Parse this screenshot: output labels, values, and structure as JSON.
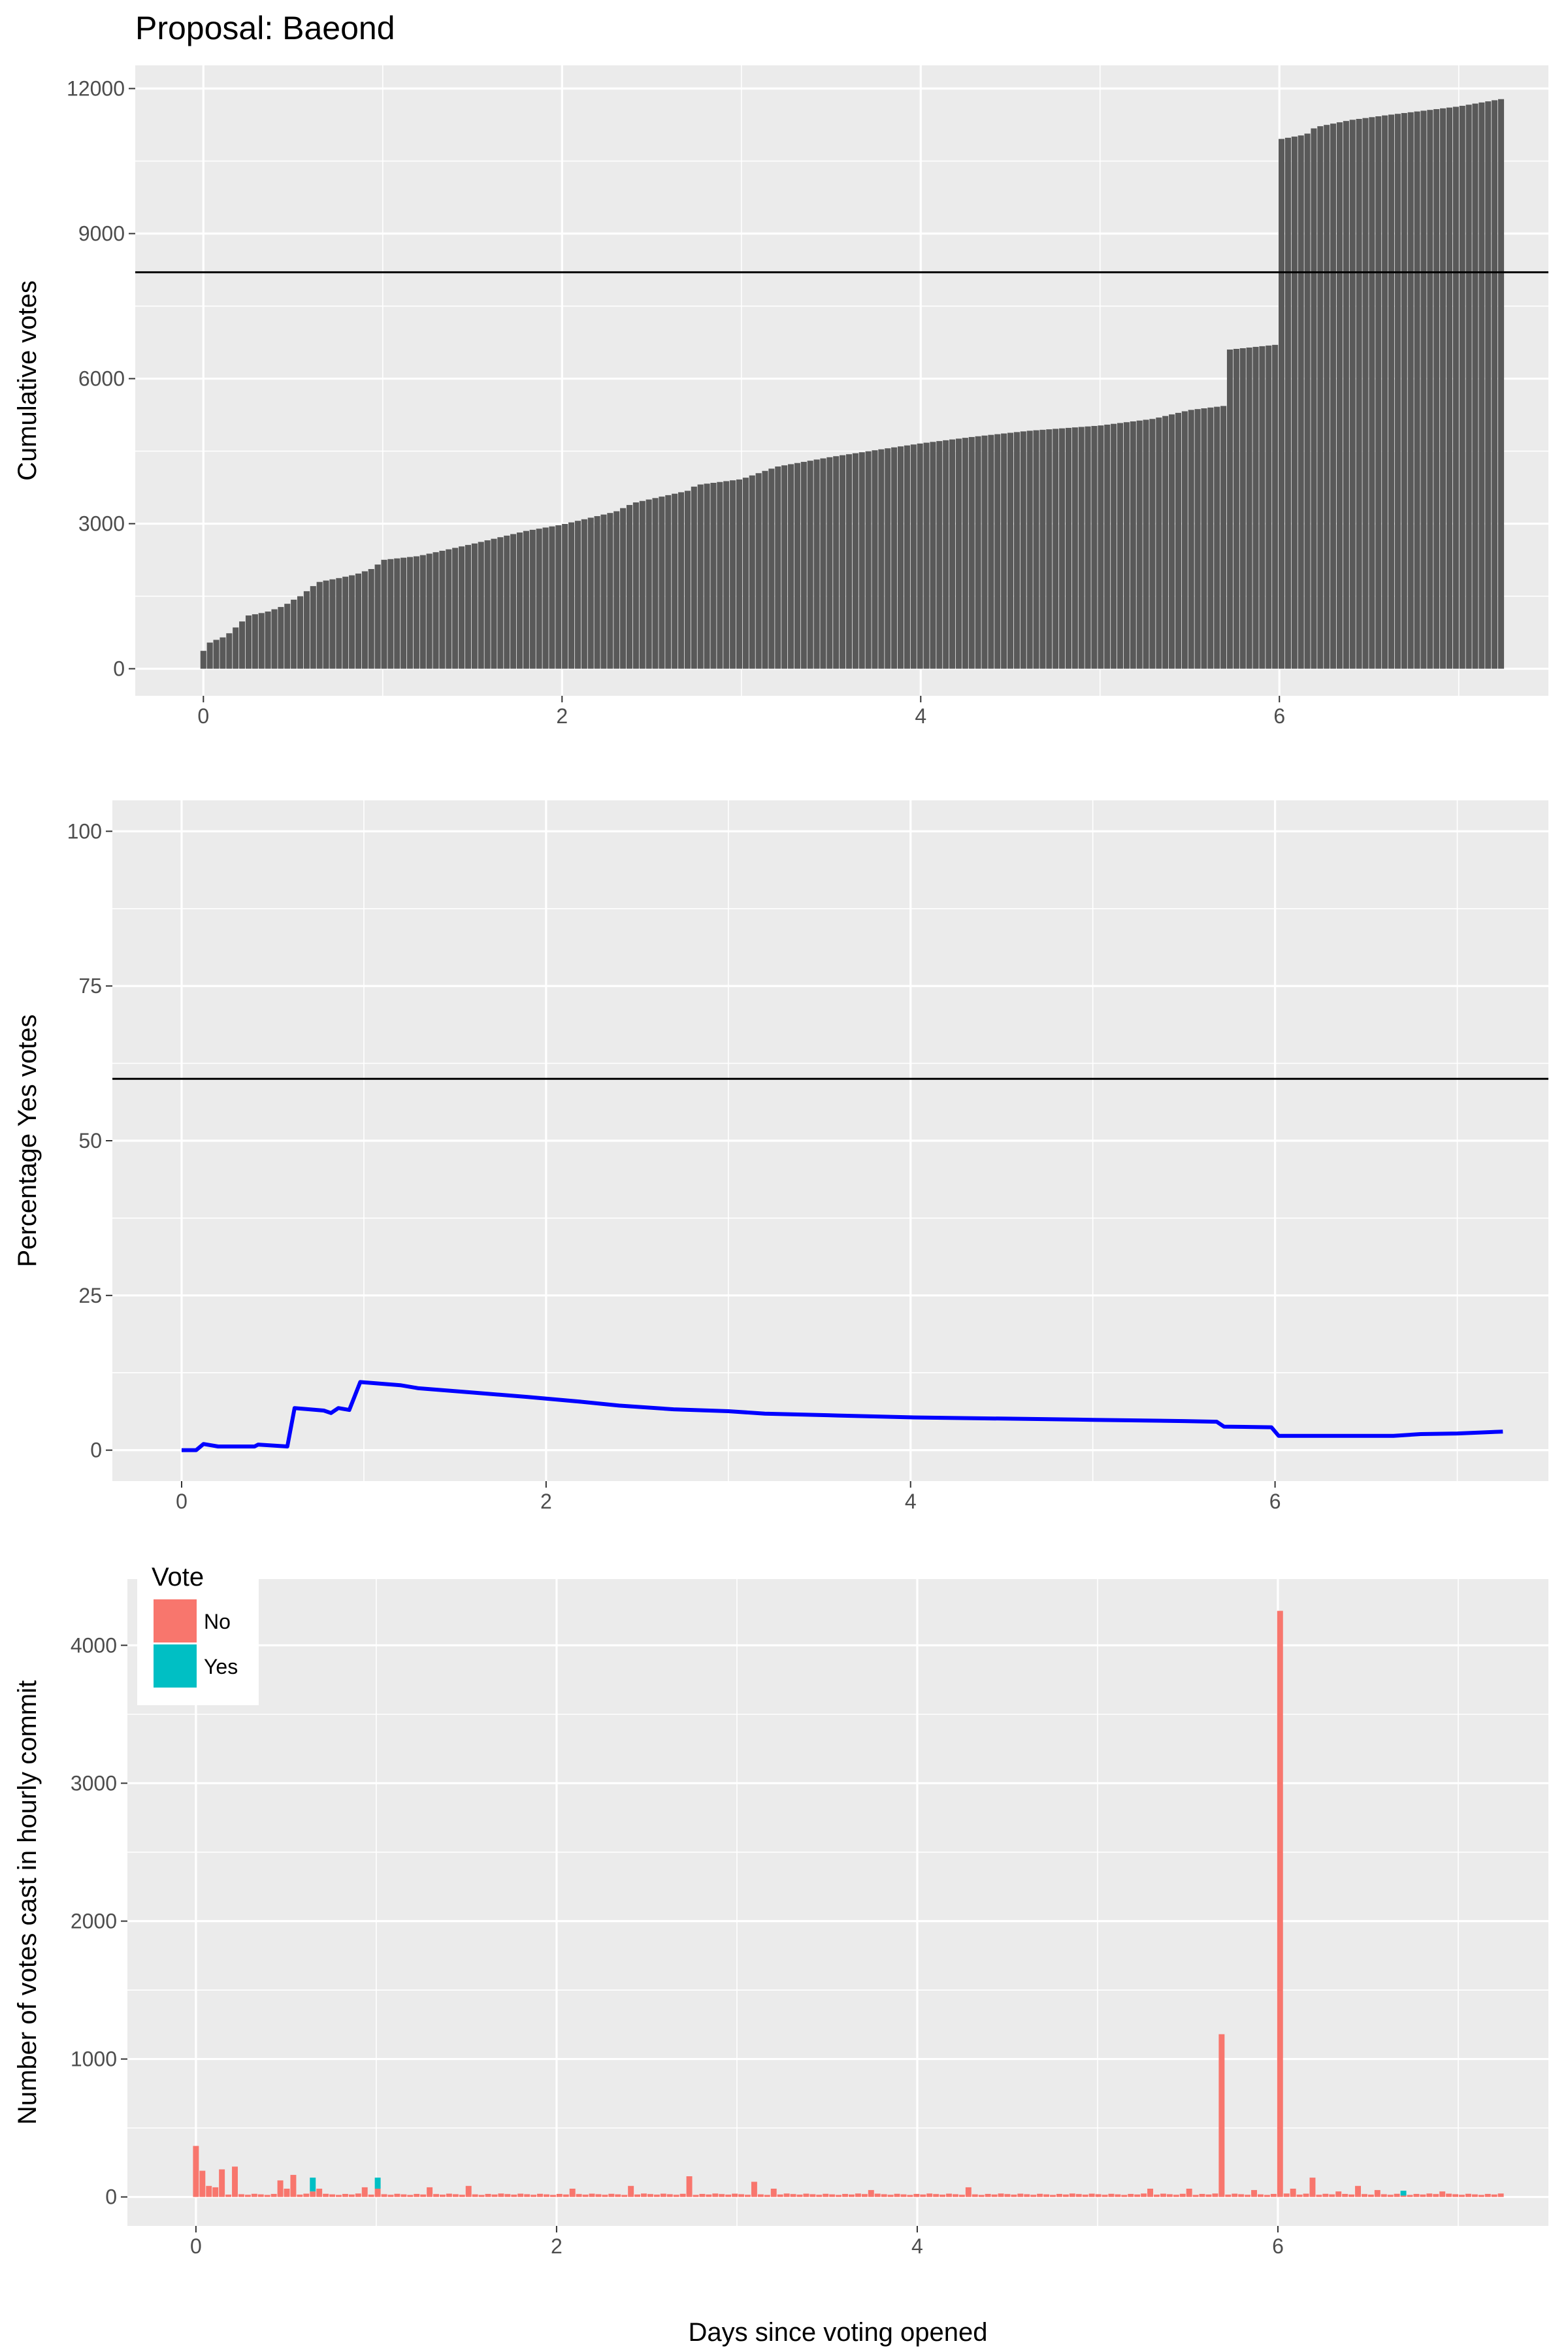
{
  "title": "Proposal: Baeond",
  "colors": {
    "cumulative_bar": "#595959",
    "yes_line": "#0000ff",
    "no": "#f8766d",
    "yes": "#00bfc4",
    "reference_line": "#000000"
  },
  "chart_data": [
    {
      "type": "bar",
      "ylabel": "Cumulative votes",
      "xlabel": "",
      "xlim": [
        -0.38,
        7.5
      ],
      "ylim": [
        -560,
        12480
      ],
      "x_ticks": [
        0,
        2,
        4,
        6
      ],
      "y_ticks": [
        0,
        3000,
        6000,
        9000,
        12000
      ],
      "x_tick_labels": [
        "0",
        "2",
        "4",
        "6"
      ],
      "y_tick_labels": [
        "0",
        "3000",
        "6000",
        "9000",
        "12000"
      ],
      "reference_line": 8200,
      "grid": true,
      "bar_width_days": 0.036,
      "keypoints": [
        [
          0,
          370
        ],
        [
          0.04,
          560
        ],
        [
          0.1,
          630
        ],
        [
          0.14,
          720
        ],
        [
          0.2,
          920
        ],
        [
          0.25,
          1100
        ],
        [
          0.35,
          1170
        ],
        [
          0.45,
          1300
        ],
        [
          0.5,
          1420
        ],
        [
          0.55,
          1520
        ],
        [
          0.6,
          1680
        ],
        [
          0.65,
          1800
        ],
        [
          0.75,
          1870
        ],
        [
          0.85,
          1950
        ],
        [
          0.95,
          2080
        ],
        [
          1.0,
          2250
        ],
        [
          1.2,
          2330
        ],
        [
          1.5,
          2580
        ],
        [
          1.8,
          2850
        ],
        [
          2.0,
          2980
        ],
        [
          2.3,
          3250
        ],
        [
          2.4,
          3430
        ],
        [
          2.7,
          3680
        ],
        [
          2.75,
          3800
        ],
        [
          3.0,
          3920
        ],
        [
          3.1,
          4050
        ],
        [
          3.2,
          4180
        ],
        [
          3.5,
          4380
        ],
        [
          3.8,
          4550
        ],
        [
          4.0,
          4660
        ],
        [
          4.3,
          4800
        ],
        [
          4.6,
          4920
        ],
        [
          5.0,
          5030
        ],
        [
          5.3,
          5170
        ],
        [
          5.5,
          5350
        ],
        [
          5.7,
          5440
        ],
        [
          5.72,
          6600
        ],
        [
          5.98,
          6700
        ],
        [
          6.0,
          10950
        ],
        [
          6.15,
          11050
        ],
        [
          6.2,
          11200
        ],
        [
          6.4,
          11350
        ],
        [
          6.6,
          11450
        ],
        [
          7.0,
          11630
        ],
        [
          7.25,
          11790
        ]
      ]
    },
    {
      "type": "line",
      "ylabel": "Percentage Yes votes",
      "xlabel": "",
      "xlim": [
        -0.38,
        7.5
      ],
      "ylim": [
        -5,
        105
      ],
      "x_ticks": [
        0,
        2,
        4,
        6
      ],
      "y_ticks": [
        0,
        25,
        50,
        75,
        100
      ],
      "x_tick_labels": [
        "0",
        "2",
        "4",
        "6"
      ],
      "y_tick_labels": [
        "0",
        "25",
        "50",
        "75",
        "100"
      ],
      "reference_line": 60,
      "grid": true,
      "points": [
        [
          0,
          0
        ],
        [
          0.08,
          0
        ],
        [
          0.12,
          1
        ],
        [
          0.2,
          0.6
        ],
        [
          0.4,
          0.6
        ],
        [
          0.42,
          0.9
        ],
        [
          0.58,
          0.6
        ],
        [
          0.62,
          6.8
        ],
        [
          0.78,
          6.4
        ],
        [
          0.82,
          6
        ],
        [
          0.86,
          6.8
        ],
        [
          0.92,
          6.5
        ],
        [
          0.98,
          11
        ],
        [
          1.2,
          10.5
        ],
        [
          1.3,
          10
        ],
        [
          1.6,
          9.3
        ],
        [
          1.9,
          8.6
        ],
        [
          2.2,
          7.8
        ],
        [
          2.4,
          7.2
        ],
        [
          2.7,
          6.6
        ],
        [
          3.0,
          6.3
        ],
        [
          3.2,
          5.9
        ],
        [
          3.6,
          5.6
        ],
        [
          4.0,
          5.3
        ],
        [
          4.5,
          5.1
        ],
        [
          5.0,
          4.9
        ],
        [
          5.5,
          4.7
        ],
        [
          5.68,
          4.6
        ],
        [
          5.72,
          3.8
        ],
        [
          5.98,
          3.7
        ],
        [
          6.02,
          2.3
        ],
        [
          6.3,
          2.3
        ],
        [
          6.65,
          2.3
        ],
        [
          6.8,
          2.6
        ],
        [
          7.0,
          2.7
        ],
        [
          7.25,
          3.0
        ]
      ]
    },
    {
      "type": "bar",
      "stacked": true,
      "xlabel": "Days since voting opened",
      "ylabel": "Number of votes cast in hourly commit",
      "xlim": [
        -0.38,
        7.5
      ],
      "ylim": [
        -210,
        4480
      ],
      "x_ticks": [
        0,
        2,
        4,
        6
      ],
      "y_ticks": [
        0,
        1000,
        2000,
        3000,
        4000
      ],
      "x_tick_labels": [
        "0",
        "2",
        "4",
        "6"
      ],
      "y_tick_labels": [
        "0",
        "1000",
        "2000",
        "3000",
        "4000"
      ],
      "legend": {
        "title": "Vote",
        "position": "top-left",
        "entries": [
          "No",
          "Yes"
        ]
      },
      "grid": true,
      "bar_width_days": 0.036,
      "baseline_no": 15,
      "bars": [
        {
          "x": 0,
          "no": 370,
          "yes": 0
        },
        {
          "x": 0.04,
          "no": 190,
          "yes": 0
        },
        {
          "x": 0.08,
          "no": 80,
          "yes": 0
        },
        {
          "x": 0.12,
          "no": 70,
          "yes": 0
        },
        {
          "x": 0.16,
          "no": 200,
          "yes": 0
        },
        {
          "x": 0.2,
          "no": 220,
          "yes": 0
        },
        {
          "x": 0.45,
          "no": 120,
          "yes": 0
        },
        {
          "x": 0.5,
          "no": 60,
          "yes": 0
        },
        {
          "x": 0.55,
          "no": 160,
          "yes": 0
        },
        {
          "x": 0.63,
          "no": 40,
          "yes": 100
        },
        {
          "x": 0.67,
          "no": 60,
          "yes": 0
        },
        {
          "x": 0.95,
          "no": 70,
          "yes": 0
        },
        {
          "x": 1.0,
          "no": 60,
          "yes": 80
        },
        {
          "x": 1.3,
          "no": 70,
          "yes": 0
        },
        {
          "x": 1.5,
          "no": 80,
          "yes": 0
        },
        {
          "x": 2.1,
          "no": 60,
          "yes": 0
        },
        {
          "x": 2.4,
          "no": 80,
          "yes": 0
        },
        {
          "x": 2.75,
          "no": 150,
          "yes": 0
        },
        {
          "x": 3.1,
          "no": 110,
          "yes": 0
        },
        {
          "x": 3.2,
          "no": 60,
          "yes": 0
        },
        {
          "x": 3.75,
          "no": 50,
          "yes": 0
        },
        {
          "x": 4.3,
          "no": 70,
          "yes": 0
        },
        {
          "x": 5.3,
          "no": 60,
          "yes": 0
        },
        {
          "x": 5.5,
          "no": 60,
          "yes": 0
        },
        {
          "x": 5.7,
          "no": 1180,
          "yes": 0
        },
        {
          "x": 5.85,
          "no": 50,
          "yes": 0
        },
        {
          "x": 6.0,
          "no": 4250,
          "yes": 0
        },
        {
          "x": 6.1,
          "no": 60,
          "yes": 0
        },
        {
          "x": 6.2,
          "no": 140,
          "yes": 0
        },
        {
          "x": 6.35,
          "no": 40,
          "yes": 0
        },
        {
          "x": 6.45,
          "no": 80,
          "yes": 0
        },
        {
          "x": 6.55,
          "no": 50,
          "yes": 0
        },
        {
          "x": 6.68,
          "no": 10,
          "yes": 35
        },
        {
          "x": 6.9,
          "no": 40,
          "yes": 0
        }
      ]
    }
  ]
}
